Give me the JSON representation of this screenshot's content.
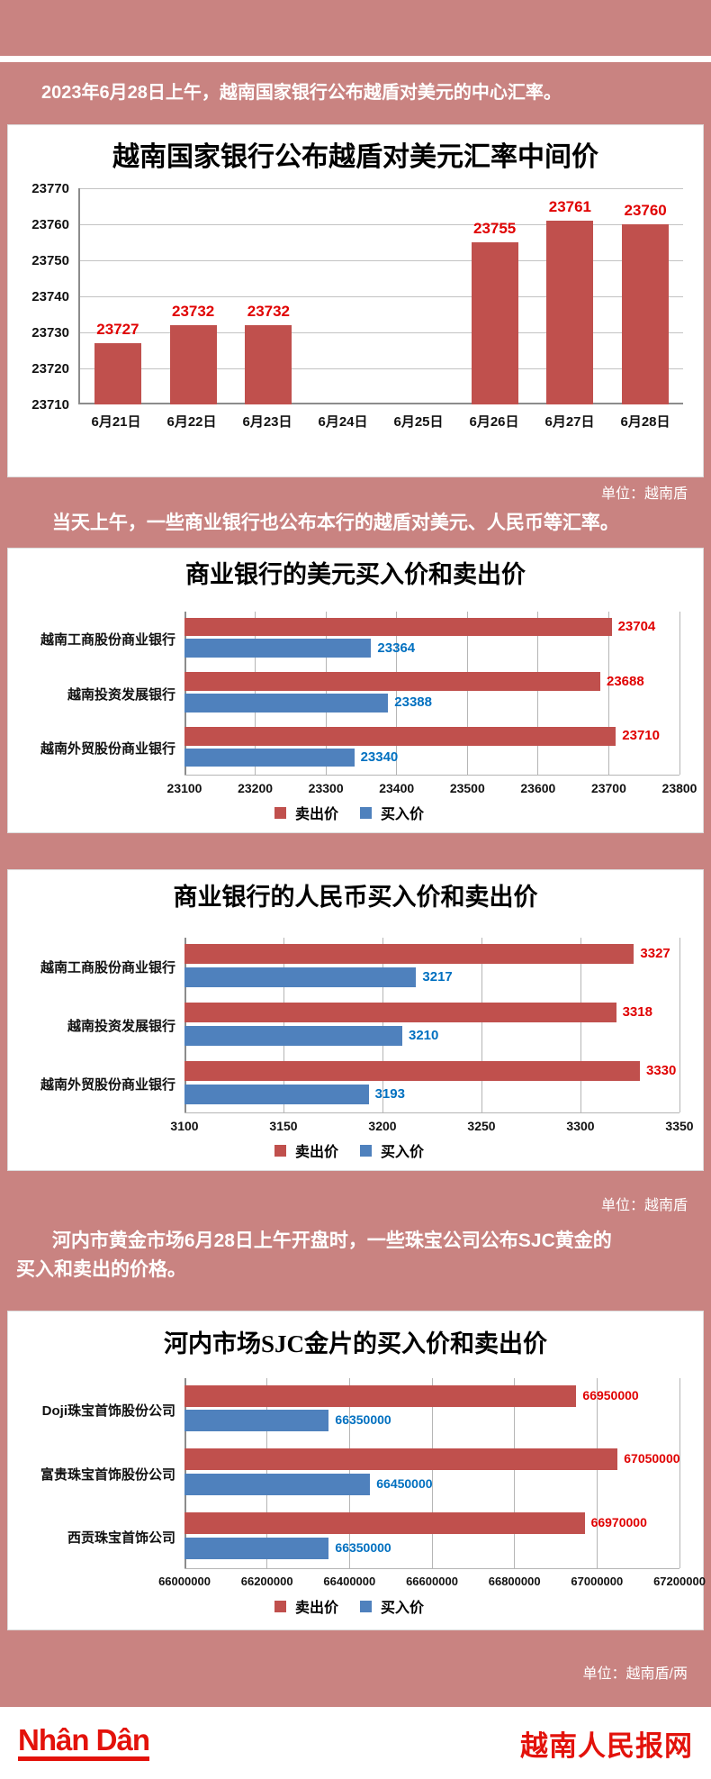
{
  "colors": {
    "background_pink": "#c98381",
    "bar_sell_red": "#c0504d",
    "bar_buy_blue": "#4f81bd",
    "value_label_red": "#e00000",
    "value_label_blue": "#0070c0",
    "brand_red": "#e3120b"
  },
  "intro1": "2023年6月28日上午，越南国家银行公布越盾对美元的中心汇率。",
  "unit_note_1": "单位：越南盾",
  "intro2": "当天上午，一些商业银行也公布本行的越盾对美元、人民币等汇率。",
  "unit_note_2": "单位：越南盾",
  "intro3_line1": "河内市黄金市场6月28日上午开盘时，一些珠宝公司公布SJC黄金的",
  "intro3_line2": "买入和卖出的价格。",
  "unit_note_3": "单位：越南盾/两",
  "legend": {
    "sell": "卖出价",
    "buy": "买入价"
  },
  "footer": {
    "logo_text": "Nhân Dân",
    "site_name": "越南人民报网"
  },
  "chart_data": [
    {
      "type": "bar",
      "title": "越南国家银行公布越盾对美元汇率中间价",
      "categories": [
        "6月21日",
        "6月22日",
        "6月23日",
        "6月24日",
        "6月25日",
        "6月26日",
        "6月27日",
        "6月28日"
      ],
      "values": [
        23727,
        23732,
        23732,
        null,
        null,
        23755,
        23761,
        23760
      ],
      "ylim": [
        23710,
        23770
      ],
      "yticks": [
        23710,
        23720,
        23730,
        23740,
        23750,
        23760,
        23770
      ],
      "unit": "越南盾",
      "grid": true,
      "legend_position": "none"
    },
    {
      "type": "bar",
      "orientation": "horizontal",
      "title": "商业银行的美元买入价和卖出价",
      "categories": [
        "越南工商股份商业银行",
        "越南投资发展银行",
        "越南外贸股份商业银行"
      ],
      "series": [
        {
          "name": "卖出价",
          "values": [
            23704,
            23688,
            23710
          ]
        },
        {
          "name": "买入价",
          "values": [
            23364,
            23388,
            23340
          ]
        }
      ],
      "xlim": [
        23100,
        23800
      ],
      "xticks": [
        23100,
        23200,
        23300,
        23400,
        23500,
        23600,
        23700,
        23800
      ],
      "unit": "越南盾",
      "grid": true,
      "legend_position": "bottom"
    },
    {
      "type": "bar",
      "orientation": "horizontal",
      "title": "商业银行的人民币买入价和卖出价",
      "categories": [
        "越南工商股份商业银行",
        "越南投资发展银行",
        "越南外贸股份商业银行"
      ],
      "series": [
        {
          "name": "卖出价",
          "values": [
            3327,
            3318,
            3330
          ]
        },
        {
          "name": "买入价",
          "values": [
            3217,
            3210,
            3193
          ]
        }
      ],
      "xlim": [
        3100,
        3350
      ],
      "xticks": [
        3100,
        3150,
        3200,
        3250,
        3300,
        3350
      ],
      "unit": "越南盾",
      "grid": true,
      "legend_position": "bottom"
    },
    {
      "type": "bar",
      "orientation": "horizontal",
      "title": "河内市场SJC金片的买入价和卖出价",
      "categories": [
        "Doji珠宝首饰股份公司",
        "富贵珠宝首饰股份公司",
        "西贡珠宝首饰公司"
      ],
      "series": [
        {
          "name": "卖出价",
          "values": [
            66950000,
            67050000,
            66970000
          ]
        },
        {
          "name": "买入价",
          "values": [
            66350000,
            66450000,
            66350000
          ]
        }
      ],
      "xlim": [
        66000000,
        67200000
      ],
      "xticks": [
        66000000,
        66200000,
        66400000,
        66600000,
        66800000,
        67000000,
        67200000
      ],
      "unit": "越南盾/两",
      "grid": true,
      "legend_position": "bottom"
    }
  ]
}
